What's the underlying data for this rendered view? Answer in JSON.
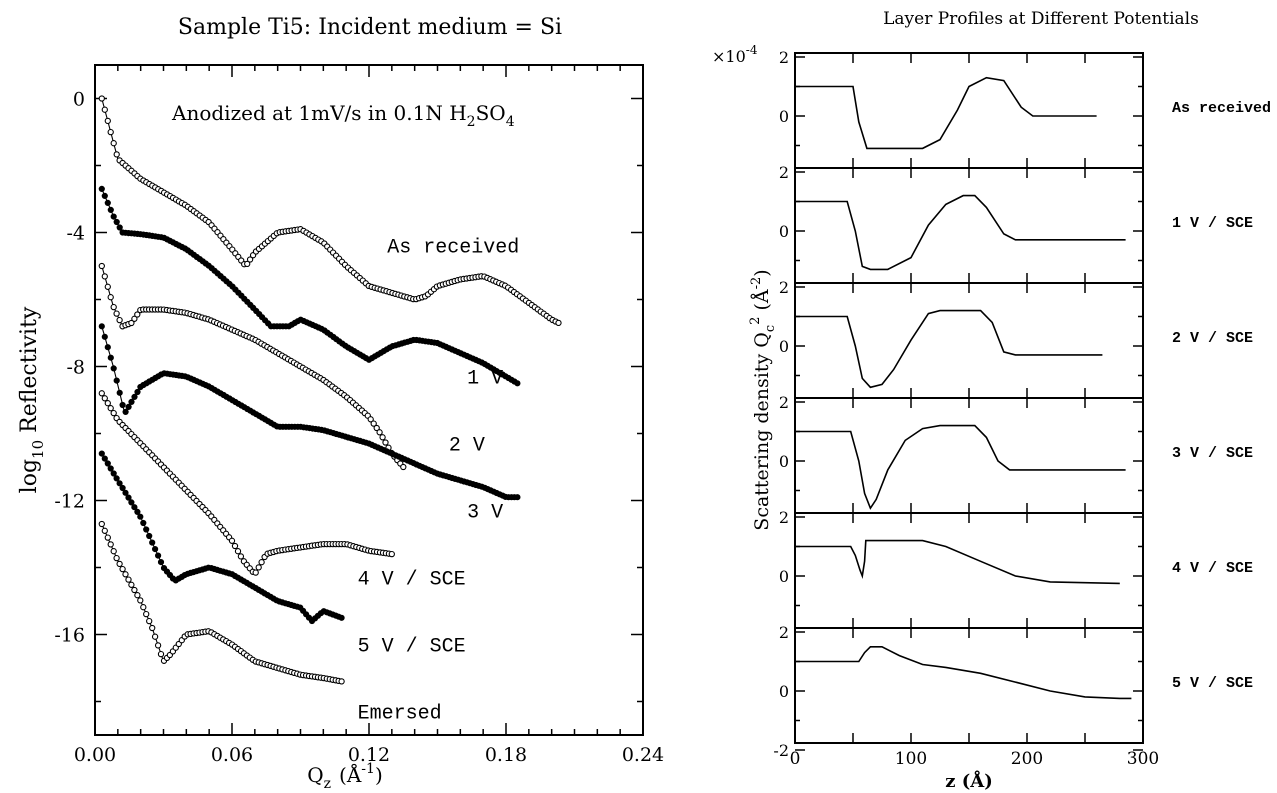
{
  "chart_data": [
    {
      "type": "scatter",
      "title": "Sample Ti5:  Incident medium = Si",
      "annotation": "Anodized at 1mV/s in 0.1N H2SO4",
      "annotation_parts": {
        "main": "Anodized at 1mV/s in 0.1N H",
        "sub1": "2",
        "mid": "SO",
        "sub2": "4"
      },
      "xlabel": {
        "main": "Q",
        "sub": "z",
        "unit": "(Å",
        "sup": "-1",
        "close": ")"
      },
      "ylabel": {
        "pre": "log",
        "sub": "10",
        "post": " Reflectivity"
      },
      "xlim": [
        0,
        0.24
      ],
      "ylim": [
        -19,
        1
      ],
      "xticks": [
        0.0,
        0.06,
        0.12,
        0.18,
        0.24
      ],
      "xtick_labels": [
        "0.00",
        "0.06",
        "0.12",
        "0.18",
        "0.24"
      ],
      "yticks": [
        0,
        -4,
        -8,
        -12,
        -16
      ],
      "ytick_labels": [
        "0",
        "-4",
        "-8",
        "-12",
        "-16"
      ],
      "grid": false,
      "series": [
        {
          "name": "As received",
          "marker": "open",
          "label_pos": [
            0.128,
            -4.6
          ],
          "x": [
            0.003,
            0.01,
            0.02,
            0.03,
            0.04,
            0.05,
            0.06,
            0.066,
            0.07,
            0.08,
            0.09,
            0.1,
            0.11,
            0.12,
            0.13,
            0.14,
            0.145,
            0.15,
            0.16,
            0.17,
            0.18,
            0.19,
            0.2,
            0.203
          ],
          "y": [
            0.0,
            -1.8,
            -2.4,
            -2.8,
            -3.2,
            -3.7,
            -4.5,
            -5.0,
            -4.6,
            -4.0,
            -3.9,
            -4.3,
            -5.0,
            -5.6,
            -5.8,
            -6.0,
            -5.9,
            -5.6,
            -5.4,
            -5.3,
            -5.6,
            -6.1,
            -6.6,
            -6.7
          ]
        },
        {
          "name": "1 V",
          "marker": "filled",
          "label_pos": [
            0.163,
            -8.5
          ],
          "x": [
            0.003,
            0.008,
            0.012,
            0.02,
            0.03,
            0.04,
            0.05,
            0.06,
            0.07,
            0.077,
            0.085,
            0.09,
            0.1,
            0.11,
            0.12,
            0.13,
            0.14,
            0.15,
            0.16,
            0.17,
            0.18,
            0.185
          ],
          "y": [
            -2.7,
            -3.5,
            -4.0,
            -4.05,
            -4.15,
            -4.5,
            -5.0,
            -5.6,
            -6.3,
            -6.8,
            -6.8,
            -6.6,
            -6.9,
            -7.4,
            -7.8,
            -7.4,
            -7.2,
            -7.3,
            -7.6,
            -7.9,
            -8.3,
            -8.5
          ]
        },
        {
          "name": "2 V",
          "marker": "open",
          "label_pos": [
            0.155,
            -10.5
          ],
          "x": [
            0.003,
            0.008,
            0.012,
            0.016,
            0.02,
            0.03,
            0.04,
            0.05,
            0.06,
            0.07,
            0.08,
            0.09,
            0.1,
            0.11,
            0.12,
            0.125,
            0.13,
            0.135
          ],
          "y": [
            -5.0,
            -6.2,
            -6.8,
            -6.7,
            -6.3,
            -6.3,
            -6.4,
            -6.6,
            -6.9,
            -7.2,
            -7.6,
            -8.0,
            -8.4,
            -8.9,
            -9.5,
            -10.0,
            -10.6,
            -11.0
          ]
        },
        {
          "name": "3 V",
          "marker": "filled",
          "label_pos": [
            0.163,
            -12.5
          ],
          "x": [
            0.003,
            0.008,
            0.013,
            0.02,
            0.03,
            0.04,
            0.05,
            0.06,
            0.07,
            0.08,
            0.09,
            0.1,
            0.11,
            0.12,
            0.13,
            0.14,
            0.15,
            0.16,
            0.17,
            0.18,
            0.185
          ],
          "y": [
            -6.8,
            -8.0,
            -9.4,
            -8.6,
            -8.2,
            -8.3,
            -8.6,
            -9.0,
            -9.4,
            -9.8,
            -9.8,
            -9.9,
            -10.1,
            -10.3,
            -10.6,
            -10.9,
            -11.2,
            -11.4,
            -11.6,
            -11.9,
            -11.9
          ]
        },
        {
          "name": "4 V / SCE",
          "marker": "open",
          "label_pos": [
            0.115,
            -14.5
          ],
          "x": [
            0.003,
            0.01,
            0.02,
            0.03,
            0.04,
            0.05,
            0.06,
            0.065,
            0.07,
            0.075,
            0.08,
            0.09,
            0.1,
            0.11,
            0.12,
            0.13
          ],
          "y": [
            -8.8,
            -9.6,
            -10.3,
            -11.0,
            -11.7,
            -12.4,
            -13.2,
            -13.8,
            -14.2,
            -13.6,
            -13.5,
            -13.4,
            -13.3,
            -13.3,
            -13.5,
            -13.6
          ]
        },
        {
          "name": "5 V / SCE",
          "marker": "filled",
          "label_pos": [
            0.115,
            -16.5
          ],
          "x": [
            0.003,
            0.01,
            0.02,
            0.03,
            0.035,
            0.04,
            0.05,
            0.06,
            0.07,
            0.08,
            0.09,
            0.095,
            0.1,
            0.108
          ],
          "y": [
            -10.6,
            -11.4,
            -12.5,
            -14.0,
            -14.4,
            -14.2,
            -14.0,
            -14.2,
            -14.6,
            -15.0,
            -15.2,
            -15.6,
            -15.3,
            -15.5
          ]
        },
        {
          "name": "Emersed",
          "marker": "open",
          "label_pos": [
            0.115,
            -18.5
          ],
          "x": [
            0.003,
            0.01,
            0.02,
            0.025,
            0.03,
            0.033,
            0.04,
            0.05,
            0.06,
            0.07,
            0.08,
            0.09,
            0.1,
            0.108
          ],
          "y": [
            -12.7,
            -13.8,
            -15.0,
            -15.8,
            -16.8,
            -16.6,
            -16.0,
            -15.9,
            -16.3,
            -16.8,
            -17.0,
            -17.2,
            -17.3,
            -17.4
          ]
        }
      ]
    },
    {
      "type": "line",
      "title": "Layer Profiles at Different Potentials",
      "exponent_label": {
        "pre": "×10",
        "sup": "-4"
      },
      "ylabel": {
        "pre": "Scattering density  Q",
        "sub": "c",
        "sup": "2",
        "unit": " (Å",
        "unitsup": "-2",
        "close": ")"
      },
      "xlabel": "z (Å)",
      "xlim": [
        0,
        300
      ],
      "xticks": [
        0,
        100,
        200,
        300
      ],
      "xtick_labels": [
        "0",
        "100",
        "200",
        "300"
      ],
      "ylim_each_panel": [
        -2,
        2
      ],
      "ytick_labels": [
        "2",
        "0",
        "-2"
      ],
      "grid": false,
      "panels": [
        {
          "name": "As received",
          "z": [
            0,
            50,
            55,
            62,
            70,
            110,
            125,
            140,
            150,
            165,
            180,
            195,
            205,
            260
          ],
          "q": [
            1.0,
            1.0,
            -0.2,
            -1.1,
            -1.1,
            -1.1,
            -0.8,
            0.2,
            1.0,
            1.3,
            1.2,
            0.3,
            0.0,
            0.0
          ]
        },
        {
          "name": "1 V / SCE",
          "z": [
            0,
            45,
            52,
            58,
            65,
            80,
            100,
            115,
            130,
            145,
            155,
            165,
            180,
            190,
            285
          ],
          "q": [
            1.0,
            1.0,
            0.0,
            -1.2,
            -1.3,
            -1.3,
            -0.9,
            0.2,
            0.9,
            1.2,
            1.2,
            0.8,
            -0.1,
            -0.3,
            -0.3
          ]
        },
        {
          "name": "2 V / SCE",
          "z": [
            0,
            45,
            52,
            58,
            65,
            75,
            85,
            100,
            115,
            125,
            160,
            170,
            180,
            190,
            265
          ],
          "q": [
            1.0,
            1.0,
            0.0,
            -1.1,
            -1.4,
            -1.3,
            -0.8,
            0.2,
            1.1,
            1.2,
            1.2,
            0.8,
            -0.2,
            -0.3,
            -0.3
          ]
        },
        {
          "name": "3 V / SCE",
          "z": [
            0,
            48,
            55,
            60,
            65,
            70,
            80,
            95,
            110,
            125,
            155,
            165,
            175,
            185,
            285
          ],
          "q": [
            1.0,
            1.0,
            0.0,
            -1.1,
            -1.6,
            -1.3,
            -0.3,
            0.7,
            1.1,
            1.2,
            1.2,
            0.8,
            0.0,
            -0.3,
            -0.3
          ]
        },
        {
          "name": "4 V / SCE",
          "z": [
            0,
            48,
            52,
            56,
            58,
            60,
            61,
            75,
            110,
            130,
            160,
            190,
            220,
            280
          ],
          "q": [
            1.0,
            1.0,
            0.7,
            0.2,
            0.0,
            0.5,
            1.2,
            1.2,
            1.2,
            1.0,
            0.5,
            0.0,
            -0.2,
            -0.25
          ]
        },
        {
          "name": "5 V / SCE",
          "z": [
            0,
            55,
            60,
            65,
            75,
            90,
            110,
            130,
            160,
            190,
            220,
            250,
            280,
            290
          ],
          "q": [
            1.0,
            1.0,
            1.3,
            1.5,
            1.5,
            1.2,
            0.9,
            0.8,
            0.6,
            0.3,
            0.0,
            -0.2,
            -0.25,
            -0.25
          ]
        }
      ]
    }
  ]
}
